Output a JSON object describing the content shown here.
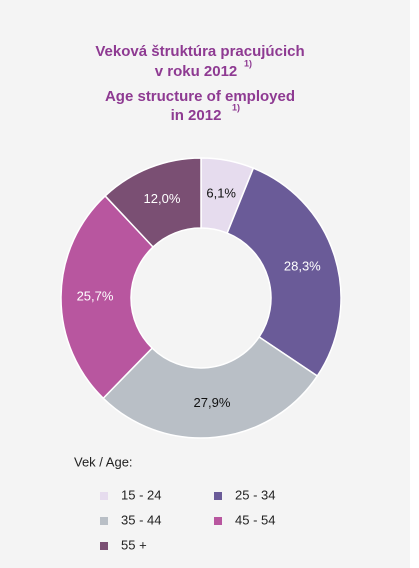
{
  "chart_data": {
    "type": "donut",
    "title": [
      "Veková štruktúra pracujúcich",
      "v roku 2012"
    ],
    "title_note": "1)",
    "subtitle": [
      "Age structure of employed",
      "in 2012"
    ],
    "subtitle_note": "1)",
    "legend_title": "Vek / Age:",
    "categories": [
      "15 - 24",
      "25 - 34",
      "35 - 44",
      "45 - 54",
      "55 +"
    ],
    "values": [
      6.1,
      28.3,
      27.9,
      25.7,
      12.0
    ],
    "value_labels": [
      "6,1%",
      "28,3%",
      "27,9%",
      "25,7%",
      "12,0%"
    ],
    "colors": [
      "#e6dcee",
      "#6a5b98",
      "#b9bfc6",
      "#b8569f",
      "#7a4f73"
    ]
  }
}
